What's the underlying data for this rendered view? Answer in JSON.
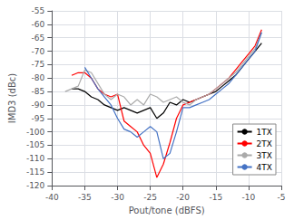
{
  "chart_data": {
    "type": "line",
    "xlabel": "Pout/tone (dBFS)",
    "ylabel": "IMD3 (dBc)",
    "xlim": [
      -40,
      -5
    ],
    "ylim": [
      -120,
      -55
    ],
    "xticks": [
      -40,
      -35,
      -30,
      -25,
      -20,
      -15,
      -10,
      -5
    ],
    "yticks": [
      -120,
      -115,
      -110,
      -105,
      -100,
      -95,
      -90,
      -85,
      -80,
      -75,
      -70,
      -65,
      -60,
      -55
    ],
    "grid": true,
    "legend": "lower right",
    "series": [
      {
        "name": "1TX",
        "color": "#000000",
        "x": [
          -37,
          -36,
          -35,
          -34,
          -33,
          -32,
          -31,
          -30,
          -29,
          -28,
          -27,
          -26,
          -25,
          -24,
          -23,
          -22,
          -21,
          -20,
          -19,
          -18,
          -17,
          -16,
          -15,
          -14,
          -13,
          -12,
          -11,
          -10,
          -9,
          -8
        ],
        "values": [
          -84,
          -84,
          -85,
          -87,
          -88,
          -90,
          -91,
          -92,
          -91,
          -92,
          -93,
          -92,
          -91,
          -95,
          -93,
          -89,
          -90,
          -88,
          -89,
          -88,
          -87,
          -86,
          -85,
          -83,
          -81,
          -79,
          -76,
          -73,
          -70,
          -67
        ]
      },
      {
        "name": "2TX",
        "color": "#ff0000",
        "x": [
          -37,
          -36,
          -35,
          -34,
          -33,
          -32,
          -31,
          -30,
          -29,
          -28,
          -27,
          -26,
          -25,
          -24,
          -23,
          -22,
          -21,
          -20,
          -19,
          -18,
          -17,
          -16,
          -15,
          -14,
          -13,
          -12,
          -11,
          -10,
          -9,
          -8
        ],
        "values": [
          -79,
          -78,
          -78,
          -80,
          -84,
          -86,
          -87,
          -86,
          -96,
          -98,
          -100,
          -105,
          -108,
          -117,
          -112,
          -104,
          -95,
          -90,
          -89,
          -88,
          -87,
          -86,
          -84,
          -82,
          -80,
          -77,
          -74,
          -71,
          -68,
          -62
        ]
      },
      {
        "name": "3TX",
        "color": "#aaaaaa",
        "x": [
          -38,
          -37,
          -36,
          -35,
          -34,
          -33,
          -32,
          -31,
          -30,
          -29,
          -28,
          -27,
          -26,
          -25,
          -24,
          -23,
          -22,
          -21,
          -20,
          -19,
          -18,
          -17,
          -16,
          -15,
          -14,
          -13,
          -12,
          -11,
          -10,
          -9,
          -8
        ],
        "values": [
          -85,
          -84,
          -83,
          -77,
          -78,
          -82,
          -86,
          -88,
          -86,
          -87,
          -90,
          -88,
          -90,
          -86,
          -87,
          -89,
          -88,
          -87,
          -89,
          -90,
          -88,
          -87,
          -86,
          -84,
          -82,
          -80,
          -78,
          -75,
          -72,
          -69,
          -63
        ]
      },
      {
        "name": "4TX",
        "color": "#4472c4",
        "x": [
          -35,
          -34,
          -33,
          -32,
          -31,
          -30,
          -29,
          -28,
          -27,
          -26,
          -25,
          -24,
          -23,
          -22,
          -21,
          -20,
          -19,
          -18,
          -17,
          -16,
          -15,
          -14,
          -13,
          -12,
          -11,
          -10,
          -9,
          -8
        ],
        "values": [
          -76,
          -80,
          -84,
          -87,
          -90,
          -95,
          -99,
          -100,
          -102,
          -100,
          -98,
          -100,
          -110,
          -108,
          -100,
          -91,
          -91,
          -90,
          -89,
          -88,
          -86,
          -84,
          -82,
          -79,
          -76,
          -73,
          -70,
          -63
        ]
      }
    ]
  }
}
